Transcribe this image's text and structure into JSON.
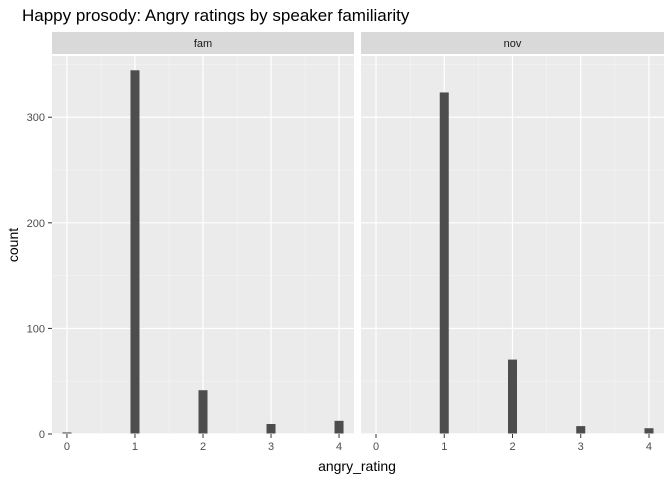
{
  "chart_data": {
    "type": "bar",
    "title": "Happy prosody: Angry ratings by speaker familiarity",
    "xlabel": "angry_rating",
    "ylabel": "count",
    "x_ticks": [
      "0",
      "1",
      "2",
      "3",
      "4"
    ],
    "y_ticks": [
      "0",
      "100",
      "200",
      "300"
    ],
    "xlim": [
      -0.22,
      4.22
    ],
    "ylim": [
      0,
      358
    ],
    "grid": true,
    "panel_background": "#ebebeb",
    "strip_background": "#d9d9d9",
    "bar_color": "#4d4d4d",
    "panels": [
      {
        "label": "fam",
        "bars": [
          {
            "x": 0,
            "count": 1
          },
          {
            "x": 1,
            "count": 344
          },
          {
            "x": 2,
            "count": 41
          },
          {
            "x": 3,
            "count": 9
          },
          {
            "x": 4,
            "count": 12
          }
        ]
      },
      {
        "label": "nov",
        "bars": [
          {
            "x": 0,
            "count": 0
          },
          {
            "x": 1,
            "count": 323
          },
          {
            "x": 2,
            "count": 70
          },
          {
            "x": 3,
            "count": 7
          },
          {
            "x": 4,
            "count": 5
          }
        ]
      }
    ]
  }
}
